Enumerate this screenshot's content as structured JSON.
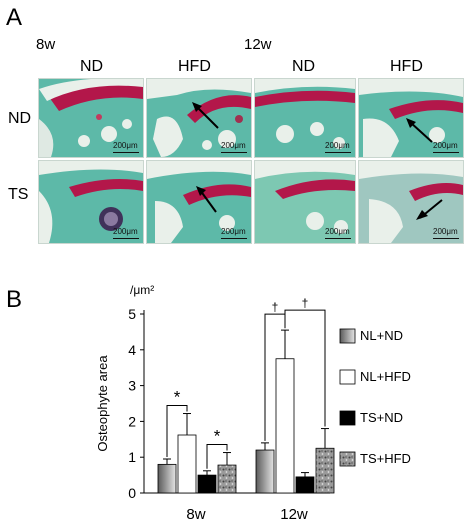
{
  "panel_a": {
    "letter": "A",
    "age_8w": "8w",
    "age_12w": "12w",
    "col_labels": [
      "ND",
      "HFD",
      "ND",
      "HFD"
    ],
    "row_labels": [
      "ND",
      "TS"
    ],
    "scale_label": "200μm"
  },
  "panel_b": {
    "letter": "B",
    "unit": "/μm²",
    "ylabel": "Osteophyte area"
  },
  "colors": {
    "bg_teal": "#4fb3a3",
    "cartilage_red": "#b3174a",
    "bone_white": "#e8efe9",
    "legend_gray": "#8a8a8a"
  },
  "chart_data": {
    "type": "bar",
    "categories": [
      "8w",
      "12w"
    ],
    "series": [
      {
        "name": "NL+ND",
        "values": [
          0.8,
          1.2
        ],
        "errors": [
          0.15,
          0.2
        ],
        "pattern": "gradient"
      },
      {
        "name": "NL+HFD",
        "values": [
          1.62,
          3.75
        ],
        "errors": [
          0.6,
          0.8
        ],
        "pattern": "white"
      },
      {
        "name": "TS+ND",
        "values": [
          0.5,
          0.45
        ],
        "errors": [
          0.12,
          0.12
        ],
        "pattern": "black"
      },
      {
        "name": "TS+HFD",
        "values": [
          0.78,
          1.25
        ],
        "errors": [
          0.35,
          0.55
        ],
        "pattern": "speckle"
      }
    ],
    "ylim": [
      0,
      5
    ],
    "yticks": [
      0,
      1,
      2,
      3,
      4,
      5
    ],
    "xlabel": "",
    "ylabel": "Osteophyte area",
    "legend_position": "right",
    "significance": [
      {
        "label": "*",
        "group": "8w",
        "between": [
          "NL+ND",
          "NL+HFD"
        ]
      },
      {
        "label": "*",
        "group": "8w",
        "between": [
          "TS+ND",
          "TS+HFD"
        ]
      },
      {
        "label": "†",
        "group": "12w",
        "between": [
          "NL+ND",
          "NL+HFD"
        ]
      },
      {
        "label": "†",
        "group": "12w",
        "between": [
          "NL+HFD",
          "TS+HFD"
        ]
      }
    ]
  }
}
